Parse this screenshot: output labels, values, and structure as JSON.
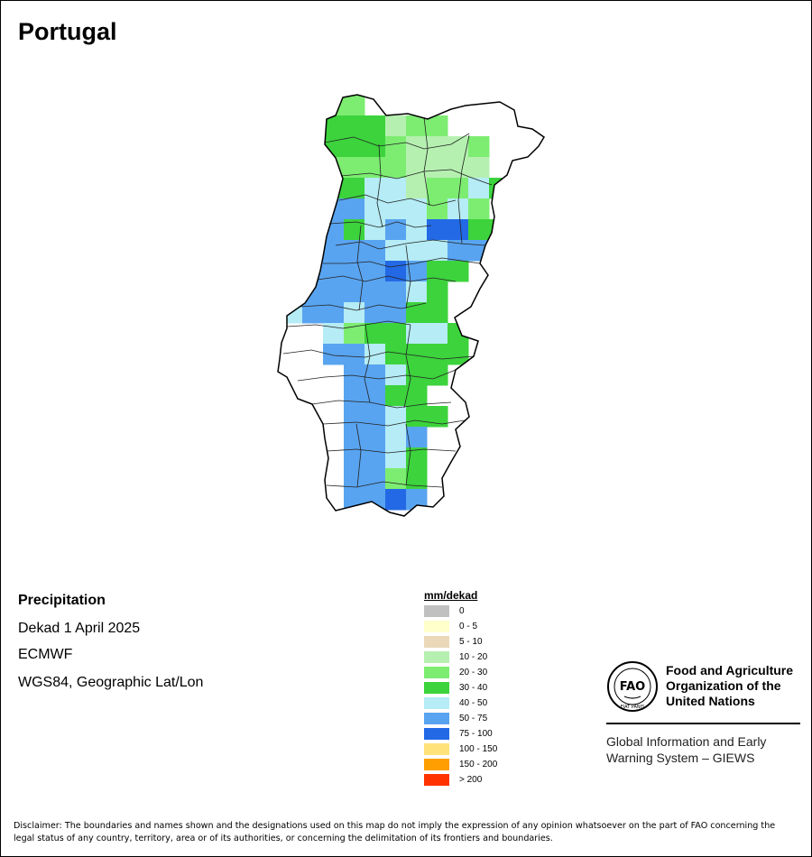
{
  "title": "Portugal",
  "info": {
    "variable": "Precipitation",
    "period": "Dekad 1 April 2025",
    "source": "ECMWF",
    "projection": "WGS84, Geographic Lat/Lon"
  },
  "legend": {
    "title": "mm/dekad",
    "items": [
      {
        "label": "0",
        "color": "#c0c0c0"
      },
      {
        "label": "0 - 5",
        "color": "#ffffcc"
      },
      {
        "label": "5 - 10",
        "color": "#ead8b8"
      },
      {
        "label": "10 - 20",
        "color": "#b5f0b0"
      },
      {
        "label": "20 - 30",
        "color": "#7ded72"
      },
      {
        "label": "30 - 40",
        "color": "#3cd33c"
      },
      {
        "label": "40 - 50",
        "color": "#b5ecf5"
      },
      {
        "label": "50 - 75",
        "color": "#59a4f0"
      },
      {
        "label": "75 - 100",
        "color": "#2369e6"
      },
      {
        "label": "100 - 150",
        "color": "#ffe27a"
      },
      {
        "label": "150 - 200",
        "color": "#ff9e00"
      },
      {
        "label": "> 200",
        "color": "#ff3300"
      }
    ]
  },
  "grid": {
    "cols": 11,
    "rows": 20,
    "cells": [
      "..44.......",
      ".5555344...",
      "..55543334.",
      "..44443333.",
      "..556634465",
      "..77666464.",
      ".6756768855",
      ".7777666777",
      "577778755..",
      "77777765...",
      "67767755...",
      "..6455665..",
      "..7765555..",
      "...77655...",
      "...7755....",
      "...77655...",
      "...7767....",
      "...7765....",
      "...7745....",
      "...7787...."
    ]
  },
  "agency": {
    "logo_text": "FAO",
    "logo_motto": "FIAT PANIS",
    "name": [
      "Food and Agriculture",
      "Organization of the",
      "United Nations"
    ],
    "system": [
      "Global Information and Early",
      "Warning System – GIEWS"
    ]
  },
  "disclaimer": "Disclaimer: The boundaries and names shown and the designations used on this map do not imply the expression of any opinion whatsoever on the part of FAO concerning the legal status of any country, territory, area or of its authorities, or concerning the delimitation of its frontiers and boundaries."
}
